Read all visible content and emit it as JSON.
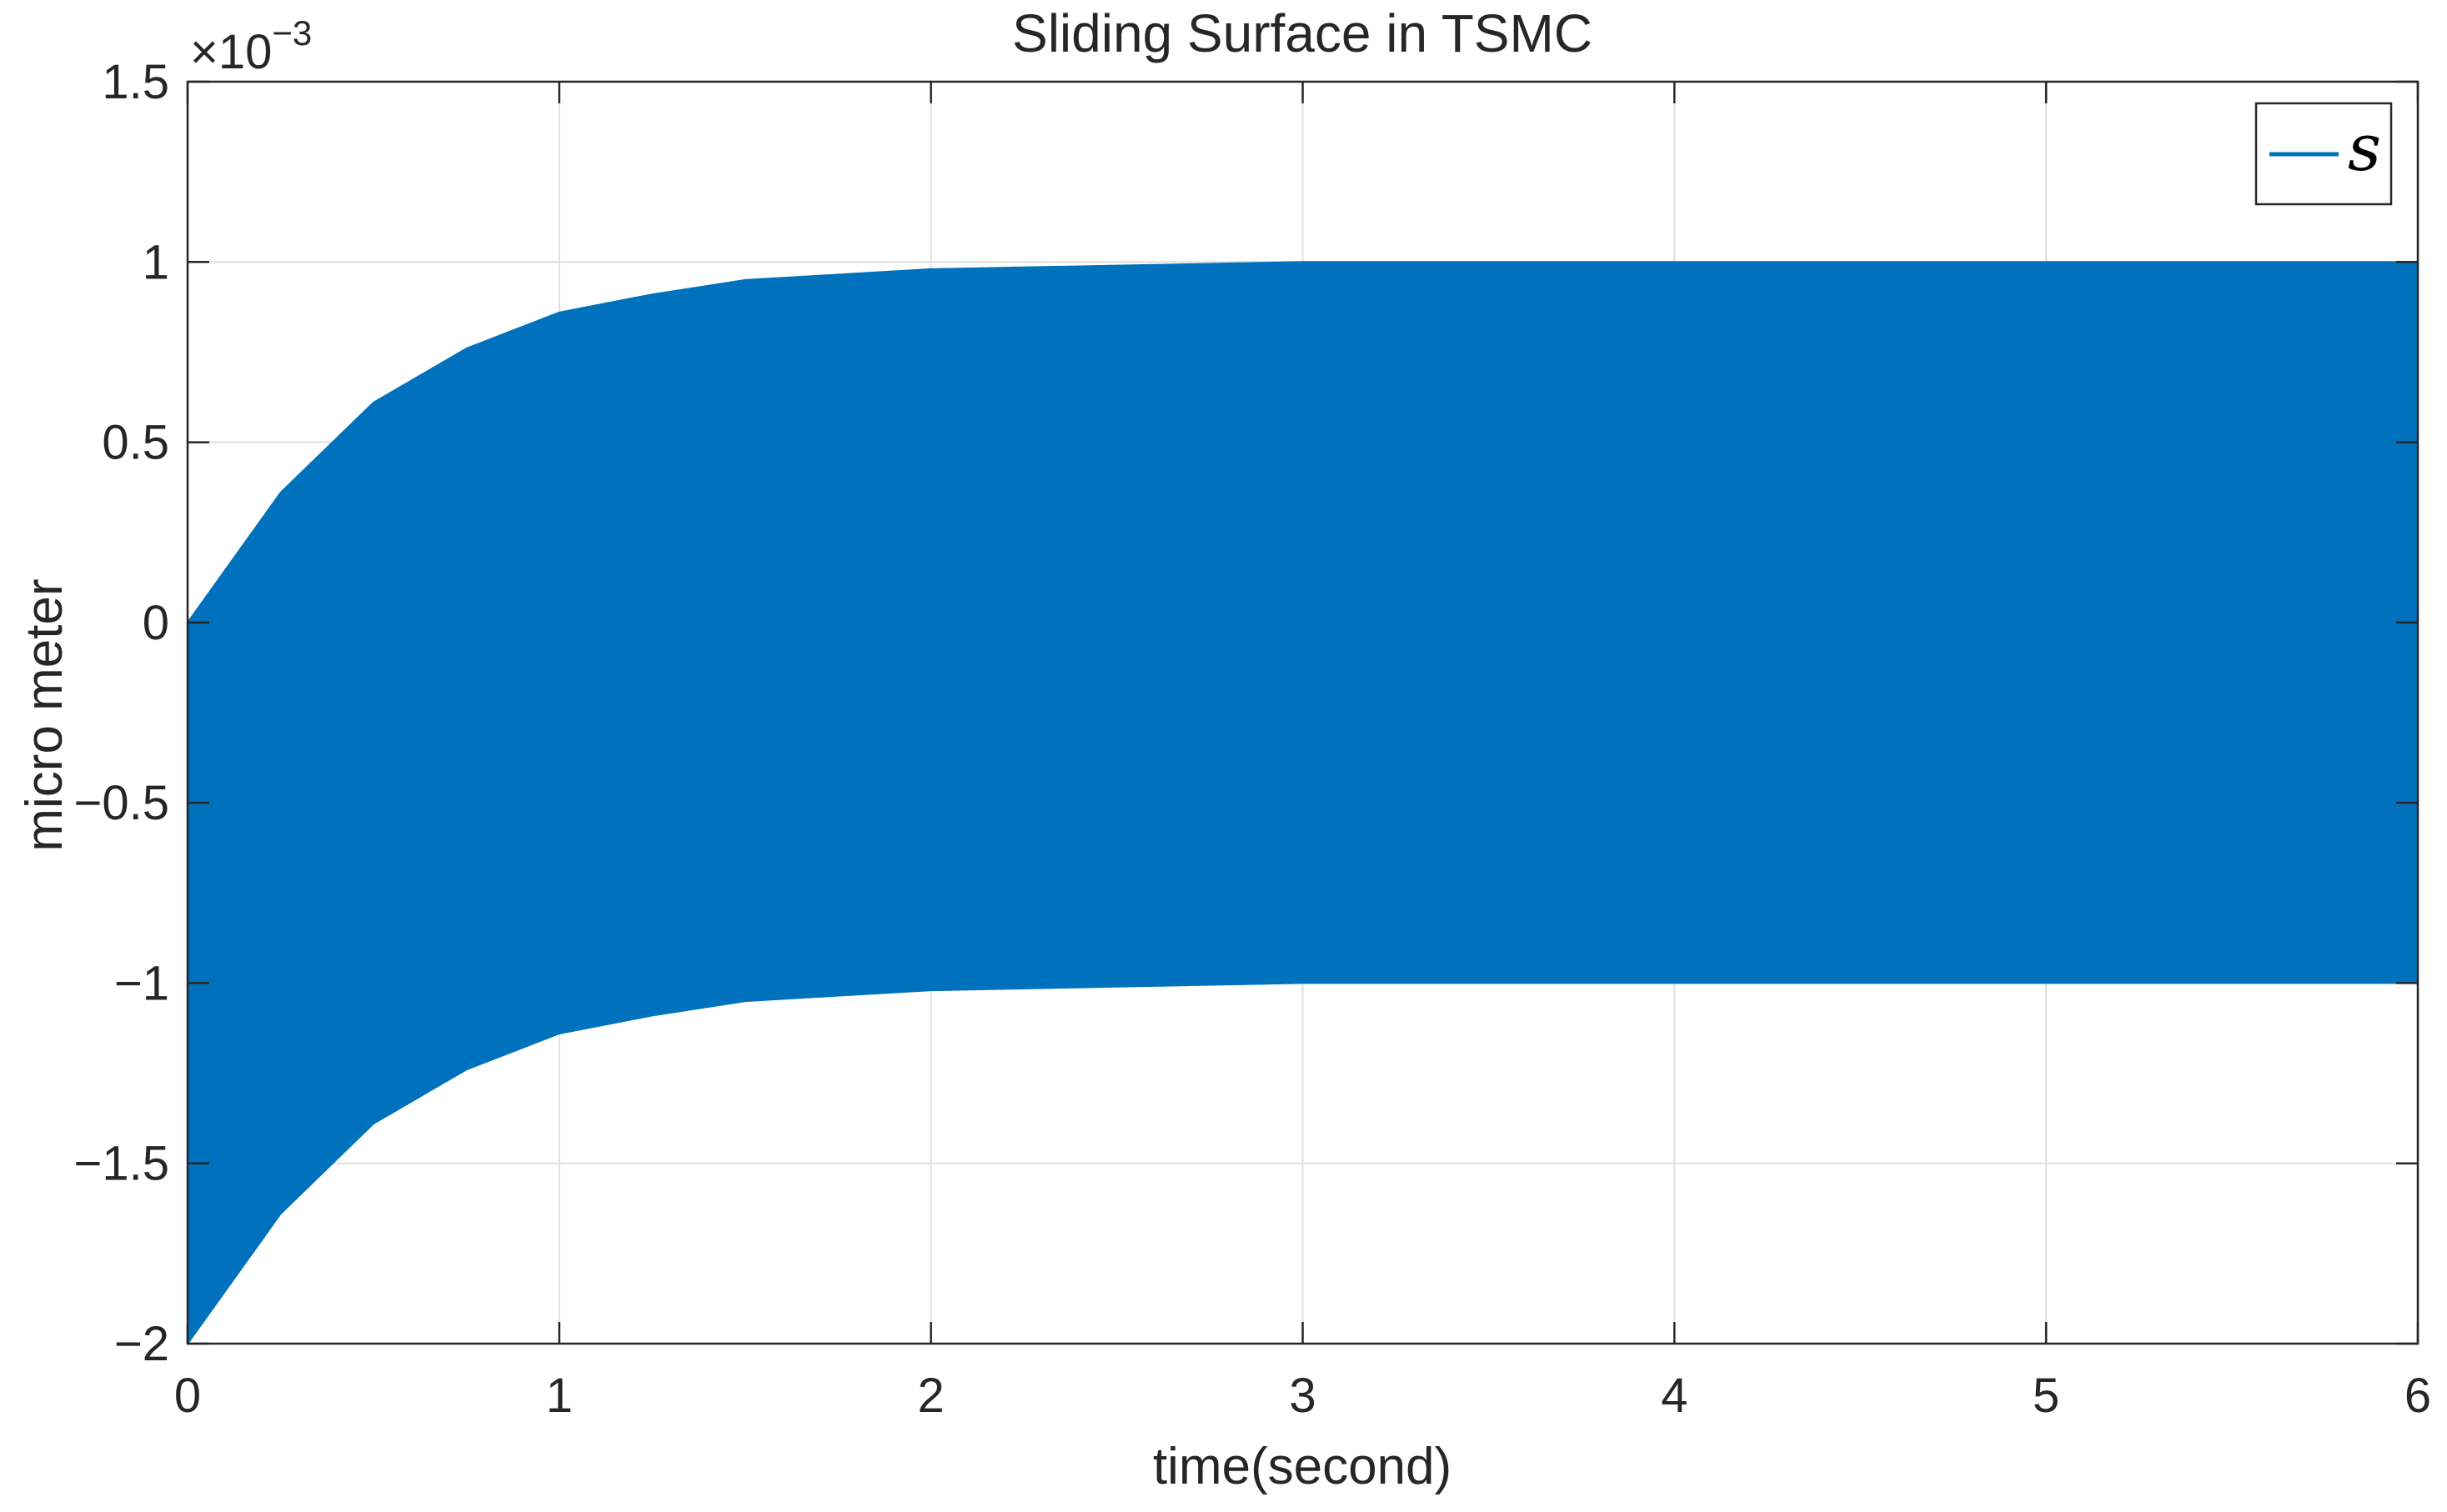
{
  "chart_data": {
    "type": "area",
    "title": "Sliding Surface in TSMC",
    "xlabel": "time(second)",
    "ylabel": "micro meter",
    "y_multiplier_base": "×10",
    "y_multiplier_exponent": "−3",
    "xlim": [
      0,
      6
    ],
    "ylim": [
      -2.0,
      1.5
    ],
    "x_ticks": [
      0,
      1,
      2,
      3,
      4,
      5,
      6
    ],
    "x_tick_labels": [
      "0",
      "1",
      "2",
      "3",
      "4",
      "5",
      "6"
    ],
    "y_ticks": [
      1.5,
      1.0,
      0.5,
      0.0,
      -0.5,
      -1.0,
      -1.5,
      -2.0
    ],
    "y_tick_labels": [
      "1.5",
      "1",
      "0.5",
      "0",
      "−0.5",
      "−1",
      "−1.5",
      "−2"
    ],
    "grid": true,
    "legend_position": "top-right",
    "series": [
      {
        "name": "s",
        "color": "#0072BD",
        "style": "high-frequency oscillation filling an envelope",
        "x": [
          0,
          0.25,
          0.5,
          0.75,
          1.0,
          1.25,
          1.5,
          2.0,
          2.5,
          3.0,
          4.0,
          5.0,
          6.0
        ],
        "upper": [
          0.0,
          0.36,
          0.61,
          0.76,
          0.86,
          0.91,
          0.95,
          0.98,
          0.99,
          1.0,
          1.0,
          1.0,
          1.0
        ],
        "lower": [
          -2.0,
          -1.64,
          -1.39,
          -1.24,
          -1.14,
          -1.09,
          -1.05,
          -1.02,
          -1.01,
          -1.0,
          -1.0,
          -1.0,
          -1.0
        ]
      }
    ]
  }
}
